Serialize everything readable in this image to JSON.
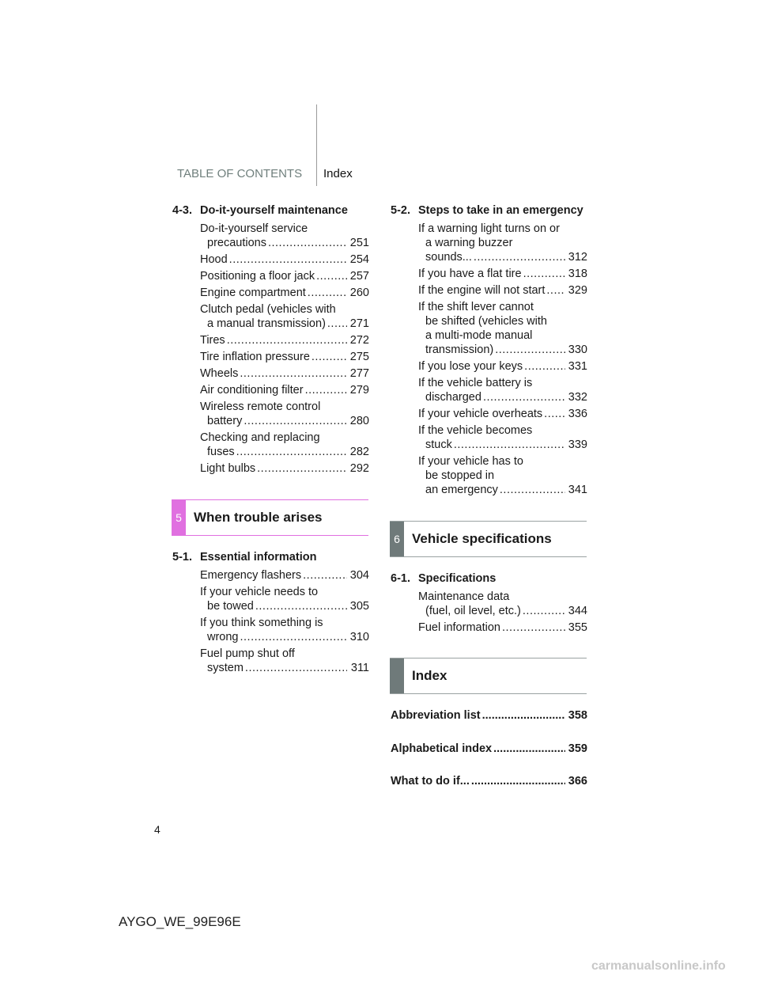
{
  "header": {
    "toc_label": "TABLE OF CONTENTS",
    "index_label": "Index"
  },
  "left": {
    "s43": {
      "num": "4-3.",
      "title": "Do-it-yourself maintenance",
      "entries": [
        {
          "lines": [
            "Do-it-yourself service",
            "precautions"
          ],
          "page": "251"
        },
        {
          "lines": [
            "Hood"
          ],
          "page": "254"
        },
        {
          "lines": [
            "Positioning a floor jack"
          ],
          "page": "257"
        },
        {
          "lines": [
            "Engine compartment"
          ],
          "page": "260"
        },
        {
          "lines": [
            "Clutch pedal (vehicles with",
            "a manual transmission)"
          ],
          "page": "271"
        },
        {
          "lines": [
            "Tires"
          ],
          "page": "272"
        },
        {
          "lines": [
            "Tire inflation pressure"
          ],
          "page": "275"
        },
        {
          "lines": [
            "Wheels"
          ],
          "page": "277"
        },
        {
          "lines": [
            "Air conditioning filter"
          ],
          "page": "279"
        },
        {
          "lines": [
            "Wireless remote control",
            "battery"
          ],
          "page": "280"
        },
        {
          "lines": [
            "Checking and replacing",
            "fuses"
          ],
          "page": "282"
        },
        {
          "lines": [
            "Light bulbs"
          ],
          "page": "292"
        }
      ]
    },
    "banner5": {
      "num": "5",
      "title": "When trouble arises",
      "color": "#e070e0"
    },
    "s51": {
      "num": "5-1.",
      "title": "Essential information",
      "entries": [
        {
          "lines": [
            "Emergency flashers"
          ],
          "page": "304"
        },
        {
          "lines": [
            "If your vehicle needs to",
            "be towed"
          ],
          "page": "305"
        },
        {
          "lines": [
            "If you think something is",
            "wrong"
          ],
          "page": "310"
        },
        {
          "lines": [
            "Fuel pump shut off",
            "system"
          ],
          "page": "311"
        }
      ]
    }
  },
  "right": {
    "s52": {
      "num": "5-2.",
      "title": "Steps to take in an emergency",
      "entries": [
        {
          "lines": [
            "If a warning light turns on or",
            "a warning buzzer",
            "sounds..."
          ],
          "page": "312"
        },
        {
          "lines": [
            "If you have a flat tire"
          ],
          "page": "318"
        },
        {
          "lines": [
            "If the engine will not start"
          ],
          "page": "329"
        },
        {
          "lines": [
            "If the shift lever cannot",
            "be shifted (vehicles with",
            "a multi-mode manual",
            "transmission)"
          ],
          "page": "330"
        },
        {
          "lines": [
            "If you lose your keys"
          ],
          "page": "331"
        },
        {
          "lines": [
            "If the vehicle battery is",
            "discharged"
          ],
          "page": "332"
        },
        {
          "lines": [
            "If your vehicle overheats"
          ],
          "page": "336"
        },
        {
          "lines": [
            "If the vehicle becomes",
            "stuck"
          ],
          "page": "339"
        },
        {
          "lines": [
            "If your vehicle has to",
            "be stopped in",
            "an emergency"
          ],
          "page": "341"
        }
      ]
    },
    "banner6": {
      "num": "6",
      "title": "Vehicle specifications",
      "color": "#6f7a7a"
    },
    "s61": {
      "num": "6-1.",
      "title": "Specifications",
      "entries": [
        {
          "lines": [
            "Maintenance data",
            "(fuel, oil level, etc.)"
          ],
          "page": "344"
        },
        {
          "lines": [
            "Fuel information"
          ],
          "page": "355"
        }
      ]
    },
    "bannerIndex": {
      "num": "",
      "title": "Index",
      "color": "#6f7a7a"
    },
    "index_entries": [
      {
        "title": "Abbreviation list",
        "page": "358"
      },
      {
        "title": "Alphabetical index",
        "page": "359"
      },
      {
        "title": "What to do if...",
        "page": "366"
      }
    ]
  },
  "page_number": "4",
  "footer": "AYGO_WE_99E96E",
  "watermark": "carmanualsonline.info"
}
